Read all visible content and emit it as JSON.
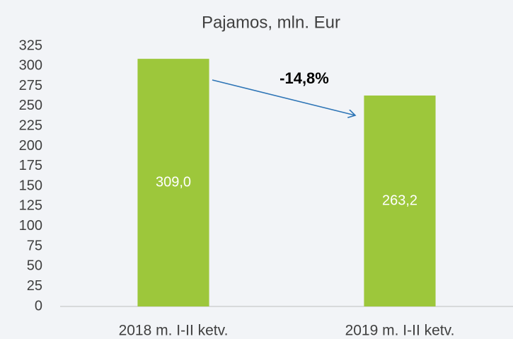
{
  "chart_data": {
    "type": "bar",
    "title": "Pajamos, mln. Eur",
    "categories": [
      "2018 m. I-II ketv.",
      "2019 m. I-II ketv."
    ],
    "values": [
      309.0,
      263.2
    ],
    "value_labels": [
      "309,0",
      "263,2"
    ],
    "color": "#9dc73b",
    "ylim": [
      0,
      325
    ],
    "yticks": [
      0,
      25,
      50,
      75,
      100,
      125,
      150,
      175,
      200,
      225,
      250,
      275,
      300,
      325
    ],
    "grid": false,
    "annotation": "-14,8%"
  }
}
